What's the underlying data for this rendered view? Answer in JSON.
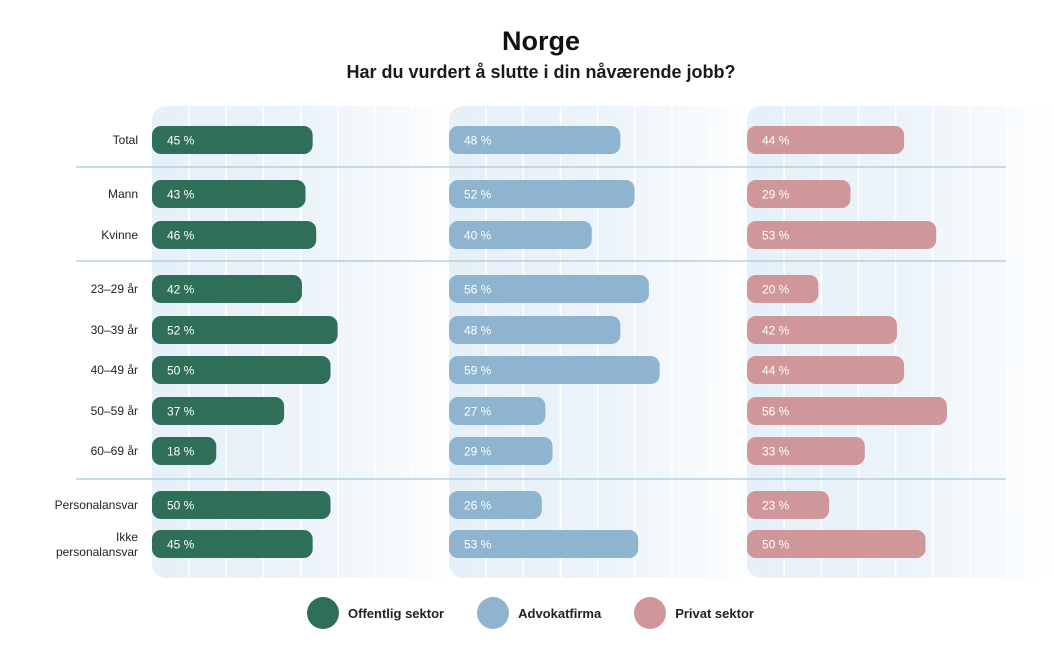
{
  "title": "Norge",
  "subtitle": "Har du vurdert å slutte i din nåværende jobb?",
  "legend": [
    {
      "label": "Offentlig sektor",
      "color": "#2f6e59"
    },
    {
      "label": "Advokatfirma",
      "color": "#8fb4cf"
    },
    {
      "label": "Privat sektor",
      "color": "#cf979a"
    }
  ],
  "chart_data": {
    "type": "bar",
    "orientation": "horizontal",
    "title": "Norge",
    "subtitle": "Har du vurdert å slutte i din nåværende jobb?",
    "unit": "%",
    "xlim": [
      0,
      100
    ],
    "categories": [
      "Total",
      "Mann",
      "Kvinne",
      "23–29 år",
      "30–39 år",
      "40–49 år",
      "50–59 år",
      "60–69 år",
      "Personalansvar",
      "Ikke personalansvar"
    ],
    "category_lines": [
      [
        "Total"
      ],
      [
        "Mann"
      ],
      [
        "Kvinne"
      ],
      [
        "23–29 år"
      ],
      [
        "30–39 år"
      ],
      [
        "40–49 år"
      ],
      [
        "50–59 år"
      ],
      [
        "60–69 år"
      ],
      [
        "Personalansvar"
      ],
      [
        "Ikke",
        "personalansvar"
      ]
    ],
    "groups": [
      [
        "Total"
      ],
      [
        "Mann",
        "Kvinne"
      ],
      [
        "23–29 år",
        "30–39 år",
        "40–49 år",
        "50–59 år",
        "60–69 år"
      ],
      [
        "Personalansvar",
        "Ikke personalansvar"
      ]
    ],
    "series": [
      {
        "name": "Offentlig sektor",
        "color": "#2f6e59",
        "values": [
          45,
          43,
          46,
          42,
          52,
          50,
          37,
          18,
          50,
          45
        ],
        "labels": [
          "45 %",
          "43 %",
          "46 %",
          "42 %",
          "52 %",
          "50 %",
          "37 %",
          "18 %",
          "50 %",
          "45 %"
        ]
      },
      {
        "name": "Advokatfirma",
        "color": "#8fb4cf",
        "values": [
          48,
          52,
          40,
          56,
          48,
          59,
          27,
          29,
          26,
          53
        ],
        "labels": [
          "48 %",
          "52 %",
          "40 %",
          "56 %",
          "48 %",
          "59 %",
          "27 %",
          "29 %",
          "26 %",
          "53 %"
        ]
      },
      {
        "name": "Privat sektor",
        "color": "#cf979a",
        "values": [
          44,
          29,
          53,
          20,
          42,
          44,
          56,
          33,
          23,
          50
        ],
        "labels": [
          "44 %",
          "29 %",
          "53 %",
          "20 %",
          "42 %",
          "44 %",
          "56 %",
          "33 %",
          "23 %",
          "50 %"
        ]
      }
    ]
  }
}
